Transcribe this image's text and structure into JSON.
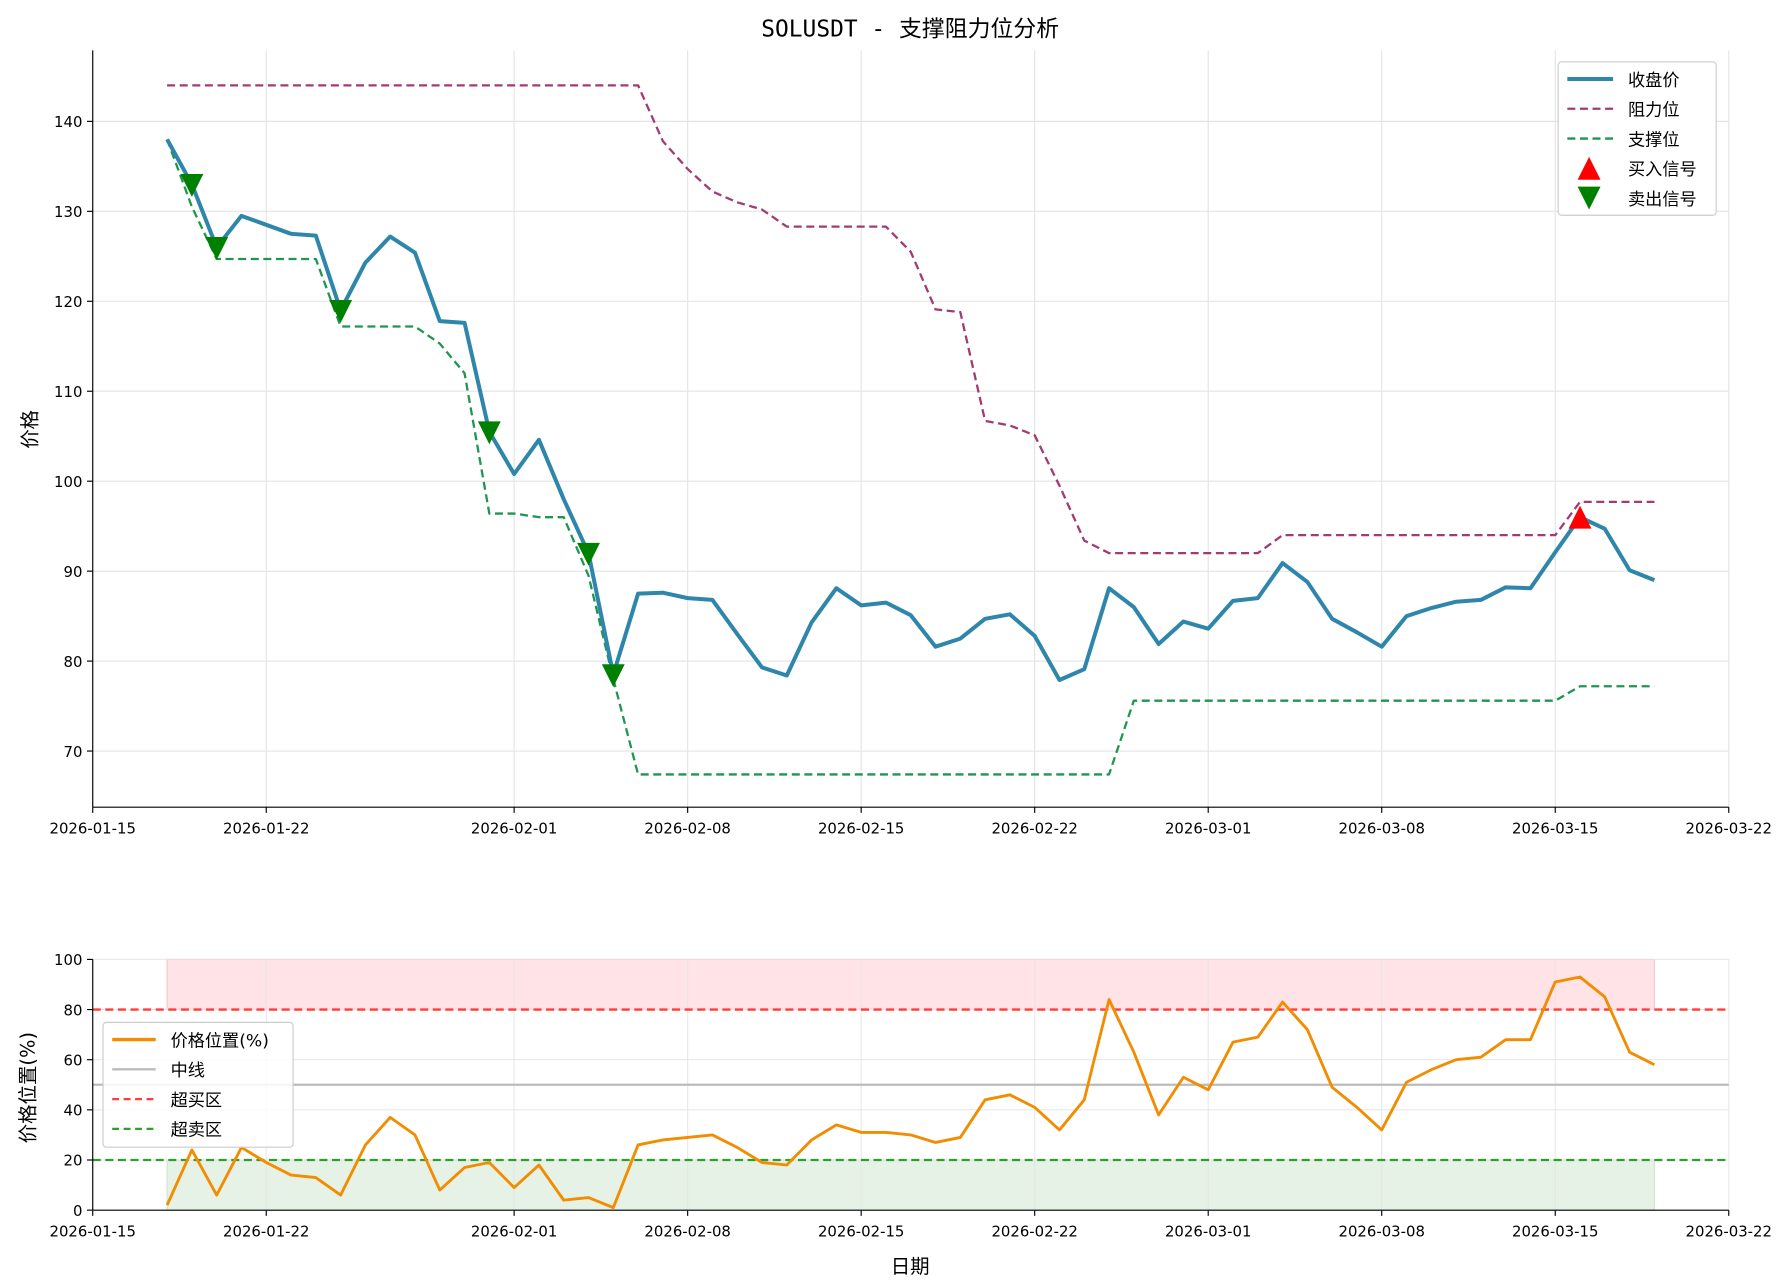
{
  "chart_data": [
    {
      "type": "line",
      "title": "SOLUSDT - 支撑阻力位分析",
      "xlabel": "",
      "ylabel": "价格",
      "x_start": "2026-01-18",
      "x_interval": "1 day",
      "xlim": [
        "2026-01-15",
        "2026-03-22"
      ],
      "xticks": [
        "2026-01-15",
        "2026-01-22",
        "2026-02-01",
        "2026-02-08",
        "2026-02-15",
        "2026-02-22",
        "2026-03-01",
        "2026-03-08",
        "2026-03-15",
        "2026-03-22"
      ],
      "ylim": [
        63.5,
        148
      ],
      "yticks": [
        70,
        80,
        90,
        100,
        110,
        120,
        130,
        140
      ],
      "grid": true,
      "legend_position": "top-right",
      "series": [
        {
          "name": "收盘价",
          "color": "#2e86ab",
          "style": "solid",
          "values": [
            138,
            133,
            126,
            129.5,
            128.5,
            127.5,
            127.3,
            119,
            124.3,
            127.2,
            125.4,
            117.8,
            117.6,
            105.5,
            100.8,
            104.6,
            98,
            92,
            78.5,
            87.5,
            87.6,
            87,
            86.8,
            83,
            79.3,
            78.4,
            84.3,
            88.1,
            86.2,
            86.5,
            85.1,
            81.6,
            82.5,
            84.7,
            85.2,
            82.8,
            77.9,
            79.1,
            88.1,
            86,
            81.9,
            84.4,
            83.6,
            86.7,
            87,
            90.9,
            88.8,
            84.7,
            83.2,
            81.6,
            85,
            85.9,
            86.6,
            86.8,
            88.2,
            88.1,
            92.1,
            96,
            94.7,
            90.1,
            89
          ]
        },
        {
          "name": "阻力位",
          "color": "#a23b72",
          "style": "dashed",
          "values": [
            144,
            144,
            144,
            144,
            144,
            144,
            144,
            144,
            144,
            144,
            144,
            144,
            144,
            144,
            144,
            144,
            144,
            144,
            144,
            144,
            137.8,
            134.7,
            132.2,
            131,
            130.2,
            128.3,
            128.3,
            128.3,
            128.3,
            128.3,
            125.5,
            119.1,
            118.8,
            106.7,
            106.2,
            105.1,
            99.5,
            93.4,
            92,
            92,
            92,
            92,
            92,
            92,
            92,
            94,
            94,
            94,
            94,
            94,
            94,
            94,
            94,
            94,
            94,
            94,
            94,
            97.7,
            97.7,
            97.7,
            97.7
          ]
        },
        {
          "name": "支撑位",
          "color": "#1e9650",
          "style": "dashed",
          "values": [
            138,
            130.5,
            124.7,
            124.7,
            124.7,
            124.7,
            124.7,
            117.2,
            117.2,
            117.2,
            117.2,
            115.3,
            112,
            96.4,
            96.4,
            96,
            96,
            89.5,
            78,
            67.4,
            67.4,
            67.4,
            67.4,
            67.4,
            67.4,
            67.4,
            67.4,
            67.4,
            67.4,
            67.4,
            67.4,
            67.4,
            67.4,
            67.4,
            67.4,
            67.4,
            67.4,
            67.4,
            67.4,
            75.6,
            75.6,
            75.6,
            75.6,
            75.6,
            75.6,
            75.6,
            75.6,
            75.6,
            75.6,
            75.6,
            75.6,
            75.6,
            75.6,
            75.6,
            75.6,
            75.6,
            75.6,
            77.2,
            77.2,
            77.2,
            77.2
          ]
        }
      ],
      "markers": [
        {
          "name": "买入信号",
          "color": "#ff0000",
          "shape": "triangle-up",
          "indices": [
            57
          ]
        },
        {
          "name": "卖出信号",
          "color": "#008000",
          "shape": "triangle-down",
          "indices": [
            1,
            2,
            7,
            13,
            17,
            18
          ]
        }
      ]
    },
    {
      "type": "line",
      "xlabel": "日期",
      "ylabel": "价格位置(%)",
      "ylim": [
        0,
        100
      ],
      "yticks": [
        0,
        20,
        40,
        60,
        80,
        100
      ],
      "xticks": [
        "2026-01-15",
        "2026-01-22",
        "2026-02-01",
        "2026-02-08",
        "2026-02-15",
        "2026-02-22",
        "2026-03-01",
        "2026-03-08",
        "2026-03-15",
        "2026-03-22"
      ],
      "grid": true,
      "legend_position": "center-left",
      "series": [
        {
          "name": "价格位置(%)",
          "color": "#f28c00",
          "values": [
            2,
            24,
            6,
            25,
            19,
            14,
            13,
            6,
            26,
            37,
            30,
            8,
            17,
            19,
            9,
            18,
            4,
            5,
            1,
            26,
            28,
            29,
            30,
            25,
            19,
            18,
            28,
            34,
            31,
            31,
            30,
            27,
            29,
            44,
            46,
            41,
            32,
            44,
            84,
            63,
            38,
            53,
            48,
            67,
            69,
            83,
            72,
            49,
            41,
            32,
            51,
            56,
            60,
            61,
            68,
            68,
            91,
            93,
            85,
            63,
            58
          ]
        }
      ],
      "hlines": [
        {
          "name": "中线",
          "value": 50,
          "color": "#bbbbbb"
        },
        {
          "name": "超买区",
          "value": 80,
          "color": "#ff3b3b"
        },
        {
          "name": "超卖区",
          "value": 20,
          "color": "#2ca02c"
        }
      ],
      "zones": [
        {
          "range": [
            80,
            100
          ],
          "color": "#ffe3e6"
        },
        {
          "range": [
            0,
            20
          ],
          "color": "#e6f2e6"
        }
      ]
    }
  ]
}
